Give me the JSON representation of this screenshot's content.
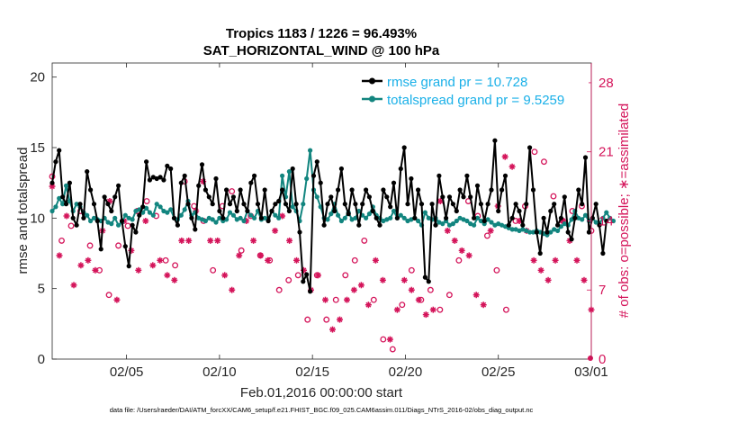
{
  "chart_data": {
    "type": "line",
    "title": "Tropics 1183 / 1226 = 96.493%",
    "subtitle": "SAT_HORIZONTAL_WIND @ 100 hPa",
    "xlabel": "Feb.01,2016 00:00:00 start",
    "ylabel": "rmse and totalspread",
    "ylabel_right": "# of obs: o=possible; ∗=assimilated",
    "xlim": [
      1,
      30
    ],
    "ylim": [
      0,
      21
    ],
    "ylim_right": [
      0,
      30
    ],
    "x_ticks": [
      5,
      10,
      15,
      20,
      25,
      30
    ],
    "x_tick_labels": [
      "02/05",
      "02/10",
      "02/15",
      "02/20",
      "02/25",
      "03/01"
    ],
    "y_ticks": [
      0,
      5,
      10,
      15,
      20
    ],
    "y_tick_labels": [
      "0",
      "5",
      "10",
      "15",
      "20"
    ],
    "y_ticks_right": [
      0,
      7,
      14,
      21,
      28
    ],
    "y_tick_labels_right": [
      "0",
      "7",
      "14",
      "21",
      "28"
    ],
    "legend_position": "top-right",
    "series": [
      {
        "name": "rmse grand pr = 10.728",
        "color": "#000000",
        "marker": "dot",
        "axis": "left",
        "values": [
          12.5,
          14.0,
          14.8,
          11.5,
          11.0,
          12.5,
          10.0,
          9.5,
          11.0,
          10.0,
          13.3,
          12.0,
          11.0,
          9.8,
          7.8,
          11.5,
          11.0,
          10.5,
          11.5,
          12.3,
          9.8,
          8.0,
          6.6,
          9.5,
          9.0,
          10.2,
          10.8,
          14.0,
          12.7,
          12.9,
          12.8,
          12.9,
          12.7,
          13.7,
          13.5,
          10.0,
          9.5,
          12.5,
          13.0,
          11.0,
          10.0,
          9.2,
          12.3,
          13.8,
          12.0,
          11.5,
          11.0,
          12.8,
          10.5,
          10.0,
          12.0,
          11.0,
          11.5,
          10.5,
          12.0,
          11.0,
          10.5,
          12.5,
          13.0,
          11.0,
          10.0,
          12.0,
          9.8,
          10.5,
          11.0,
          11.2,
          12.0,
          11.0,
          10.5,
          13.5,
          11.0,
          9.0,
          5.5,
          6.0,
          4.8,
          13.0,
          14.0,
          12.5,
          9.5,
          11.0,
          11.5,
          10.5,
          12.0,
          13.5,
          11.0,
          10.3,
          12.0,
          11.0,
          9.5,
          11.0,
          12.0,
          11.5,
          10.5,
          10.0,
          9.5,
          12.0,
          11.5,
          10.8,
          12.5,
          10.0,
          13.5,
          15.0,
          11.0,
          12.8,
          10.0,
          12.0,
          11.0,
          5.8,
          5.5,
          11.0,
          9.5,
          13.0,
          11.5,
          10.0,
          11.5,
          11.0,
          10.5,
          12.0,
          11.5,
          13.0,
          11.5,
          10.0,
          12.3,
          11.0,
          9.8,
          11.0,
          12.0,
          15.5,
          10.5,
          12.0,
          13.0,
          9.5,
          10.0,
          11.0,
          10.5,
          9.5,
          11.0,
          15.0,
          12.0,
          9.0,
          7.5,
          10.0,
          9.0,
          10.5,
          11.0,
          9.5,
          10.0,
          11.5,
          9.0,
          8.5,
          10.0,
          12.0,
          11.0,
          14.3,
          9.0,
          10.0,
          11.0,
          9.5,
          7.5,
          9.8
        ],
        "x_step": 0.1875
      },
      {
        "name": "totalspread grand pr = 9.5259",
        "color": "#12857f",
        "marker": "dot",
        "axis": "left",
        "values": [
          10.5,
          10.8,
          11.4,
          11.0,
          12.3,
          11.2,
          10.5,
          11.0,
          10.8,
          10.4,
          10.2,
          9.8,
          10.0,
          9.9,
          9.8,
          10.0,
          9.7,
          9.6,
          10.0,
          9.5,
          9.7,
          10.2,
          10.0,
          9.9,
          10.5,
          10.6,
          10.4,
          10.7,
          10.4,
          10.2,
          11.0,
          10.8,
          10.5,
          10.4,
          10.6,
          10.0,
          9.9,
          10.2,
          10.6,
          11.2,
          10.2,
          10.4,
          10.0,
          9.9,
          9.8,
          10.0,
          9.9,
          9.7,
          10.0,
          9.8,
          9.9,
          10.4,
          10.2,
          9.9,
          10.0,
          9.8,
          10.5,
          10.2,
          10.0,
          10.5,
          9.9,
          10.0,
          9.9,
          10.5,
          10.2,
          10.0,
          13.0,
          11.5,
          13.3,
          10.8,
          10.5,
          9.8,
          11.0,
          12.8,
          14.8,
          12.0,
          11.5,
          10.8,
          10.0,
          9.9,
          10.3,
          11.0,
          10.2,
          9.8,
          10.0,
          10.4,
          9.9,
          10.0,
          10.5,
          10.2,
          10.0,
          10.3,
          10.8,
          10.2,
          10.0,
          9.8,
          9.9,
          10.0,
          10.5,
          10.0,
          10.2,
          10.0,
          9.8,
          9.9,
          10.0,
          9.8,
          9.5,
          10.4,
          10.0,
          9.9,
          10.0,
          9.7,
          9.6,
          9.8,
          9.5,
          9.6,
          9.8,
          10.0,
          9.9,
          9.8,
          9.6,
          9.5,
          10.0,
          9.8,
          9.6,
          9.9,
          9.7,
          9.5,
          9.6,
          9.5,
          9.4,
          9.3,
          9.2,
          9.2,
          9.1,
          9.2,
          9.1,
          9.0,
          9.0,
          9.1,
          9.0,
          8.9,
          8.8,
          9.0,
          9.2,
          9.1,
          9.4,
          9.6,
          9.5,
          9.9,
          10.5,
          10.0,
          9.9,
          10.2,
          9.8,
          10.0,
          9.7,
          9.6,
          10.0,
          10.4,
          10.0,
          9.8
        ],
        "x_step": 0.1875
      }
    ],
    "obs_possible_right_axis": [
      18.5,
      12.0,
      13.5,
      15.0,
      11.5,
      9.0,
      6.5,
      11.5,
      13.5,
      15.0,
      16.0,
      14.5,
      10.0,
      9.5,
      18.0,
      15.5,
      14.0,
      9.0,
      15.5,
      17.0,
      11.0,
      14.5,
      10.5,
      10.0,
      7.0,
      8.0,
      8.5,
      4.0,
      8.5,
      4.0,
      6.0,
      8.5,
      10.0,
      12.0,
      6.0,
      2.0,
      1.0,
      5.5,
      9.0,
      6.0,
      7.0,
      5.0,
      6.5,
      10.0,
      16.0,
      14.5,
      12.5,
      9.0,
      5.0,
      14.0,
      15.5,
      21.0,
      20.0,
      16.5,
      14.0,
      15.0,
      15.5,
      13.0
    ],
    "obs_assimilated_right_axis": [
      17.5,
      10.5,
      14.5,
      7.5,
      9.5,
      10.0,
      9.0,
      13.0,
      16.0,
      6.0,
      14.0,
      11.0,
      9.0,
      14.0,
      9.5,
      10.0,
      8.5,
      8.0,
      12.0,
      12.0,
      15.0,
      18.0,
      12.0,
      12.0,
      8.5,
      7.0,
      10.5,
      14.0,
      12.0,
      10.5,
      10.0,
      13.0,
      14.5,
      12.0,
      10.0,
      9.0,
      7.0,
      8.5,
      6.0,
      3.0,
      4.0,
      6.0,
      7.0,
      7.5,
      5.5,
      10.0,
      8.0,
      2.0,
      5.0,
      8.0,
      7.0,
      6.0,
      4.5,
      5.0,
      16.0,
      13.0,
      12.0,
      11.0,
      10.5,
      6.5,
      5.5,
      13.0,
      15.5,
      20.5,
      19.5,
      14.0,
      13.0,
      10.0,
      9.0,
      8.0,
      10.0,
      14.0,
      12.0,
      10.0,
      8.0,
      5.0
    ],
    "footer": "data file: /Users/raeder/DAI/ATM_forcXX/CAM6_setup/f.e21.FHIST_BGC.f09_025.CAM6assim.011/Diags_NTrS_2016-02/obs_diag_output.nc"
  }
}
